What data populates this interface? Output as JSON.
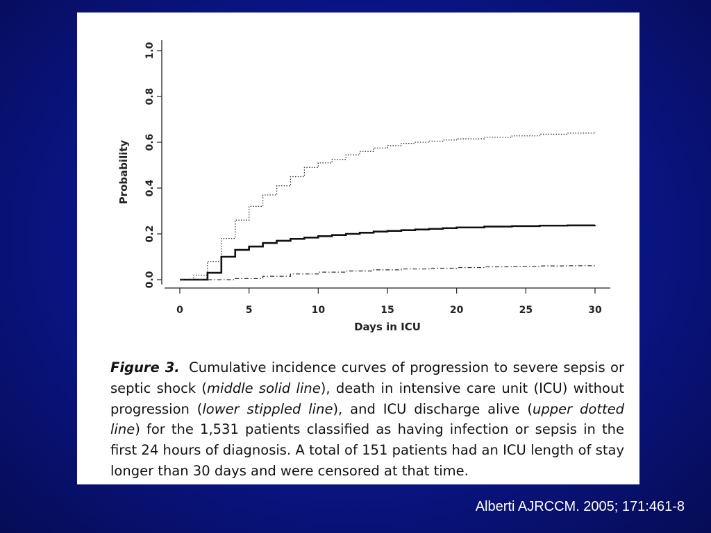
{
  "chart_data": {
    "type": "line",
    "step": true,
    "xlabel": "Days in ICU",
    "ylabel": "Probability",
    "xlim": [
      0,
      30
    ],
    "ylim": [
      0,
      1
    ],
    "xticks": [
      "0",
      "5",
      "10",
      "15",
      "20",
      "25",
      "30"
    ],
    "yticks": [
      "0.0",
      "0.2",
      "0.4",
      "0.6",
      "0.8",
      "1.0"
    ],
    "grid": false,
    "series": [
      {
        "name": "ICU discharge alive",
        "style": "dotted",
        "x": [
          0,
          1,
          2,
          3,
          4,
          5,
          6,
          7,
          8,
          9,
          10,
          11,
          12,
          13,
          14,
          15,
          16,
          17,
          18,
          19,
          20,
          22,
          24,
          26,
          28,
          30
        ],
        "y": [
          0.0,
          0.02,
          0.08,
          0.18,
          0.26,
          0.32,
          0.37,
          0.41,
          0.45,
          0.49,
          0.51,
          0.525,
          0.545,
          0.56,
          0.575,
          0.585,
          0.595,
          0.6,
          0.605,
          0.61,
          0.615,
          0.622,
          0.628,
          0.635,
          0.64,
          0.645
        ]
      },
      {
        "name": "progression to severe sepsis or septic shock",
        "style": "solid",
        "x": [
          0,
          1,
          2,
          3,
          4,
          5,
          6,
          7,
          8,
          9,
          10,
          11,
          12,
          13,
          14,
          15,
          16,
          17,
          18,
          19,
          20,
          22,
          24,
          26,
          28,
          30
        ],
        "y": [
          0.0,
          0.0,
          0.03,
          0.1,
          0.13,
          0.145,
          0.16,
          0.17,
          0.178,
          0.184,
          0.19,
          0.195,
          0.2,
          0.205,
          0.21,
          0.213,
          0.216,
          0.219,
          0.222,
          0.225,
          0.228,
          0.232,
          0.234,
          0.236,
          0.237,
          0.238
        ]
      },
      {
        "name": "death in ICU without progression",
        "style": "dashdot",
        "x": [
          0,
          2,
          4,
          6,
          8,
          10,
          12,
          14,
          16,
          18,
          20,
          22,
          24,
          26,
          28,
          30
        ],
        "y": [
          0.0,
          0.0,
          0.005,
          0.015,
          0.025,
          0.033,
          0.038,
          0.043,
          0.047,
          0.05,
          0.053,
          0.056,
          0.058,
          0.06,
          0.061,
          0.062
        ]
      }
    ]
  },
  "caption": {
    "figure_label": "Figure 3.",
    "t1": "Cumulative incidence curves of progression to severe sepsis or septic shock (",
    "e1": "middle solid line",
    "t2": "), death in intensive care unit (ICU) without progression (",
    "e2": "lower stippled line",
    "t3": "), and ICU discharge alive (",
    "e3": "upper dotted line",
    "t4": ") for the 1,531 patients classified as having infection or sepsis in the first 24 hours of diagnosis. A total of 151 patients had an ICU length of stay longer than 30 days and were censored at that time."
  },
  "citation": "Alberti AJRCCM. 2005; 171:461-8"
}
